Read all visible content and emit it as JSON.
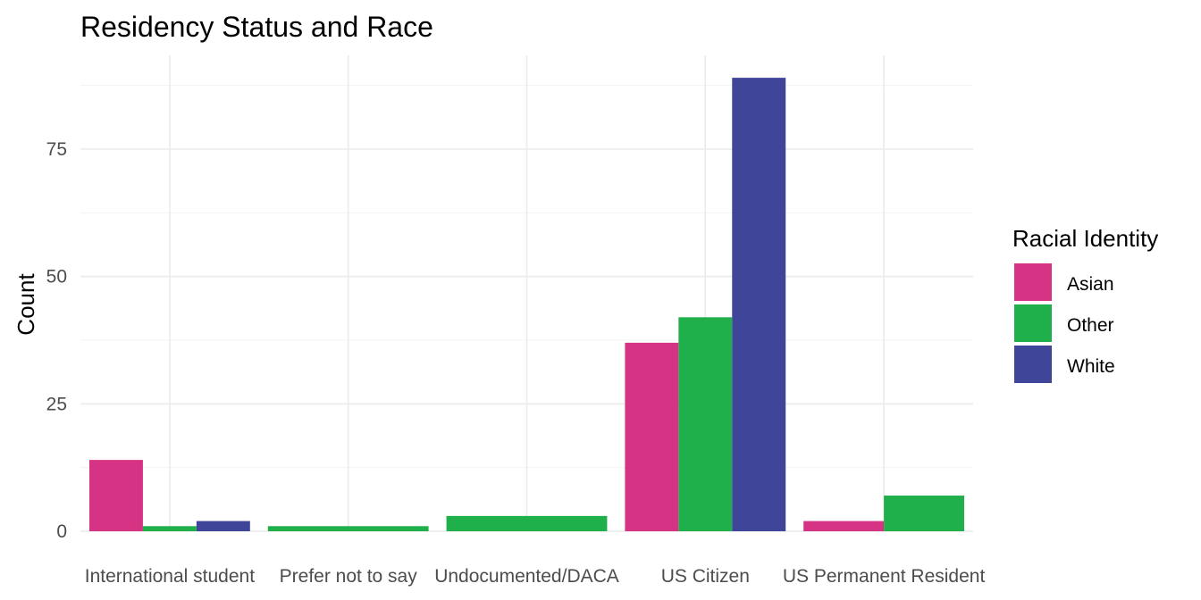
{
  "chart_data": {
    "type": "bar",
    "title": "Residency Status and Race",
    "xlabel": "",
    "ylabel": "Count",
    "categories": [
      "International student",
      "Prefer not to say",
      "Undocumented/DACA",
      "US Citizen",
      "US Permanent Resident"
    ],
    "series": [
      {
        "name": "Asian",
        "color": "#d63384",
        "values": [
          14,
          null,
          null,
          37,
          2
        ]
      },
      {
        "name": "Other",
        "color": "#20b04b",
        "values": [
          1,
          1,
          3,
          42,
          7
        ]
      },
      {
        "name": "White",
        "color": "#3f4599",
        "values": [
          2,
          null,
          null,
          89,
          null
        ]
      }
    ],
    "ylim": [
      0,
      93
    ],
    "yticks": [
      0,
      25,
      50,
      75
    ],
    "legend": {
      "title": "Racial Identity",
      "position": "right"
    },
    "grid": true,
    "position_dodge": "preserve-total"
  }
}
